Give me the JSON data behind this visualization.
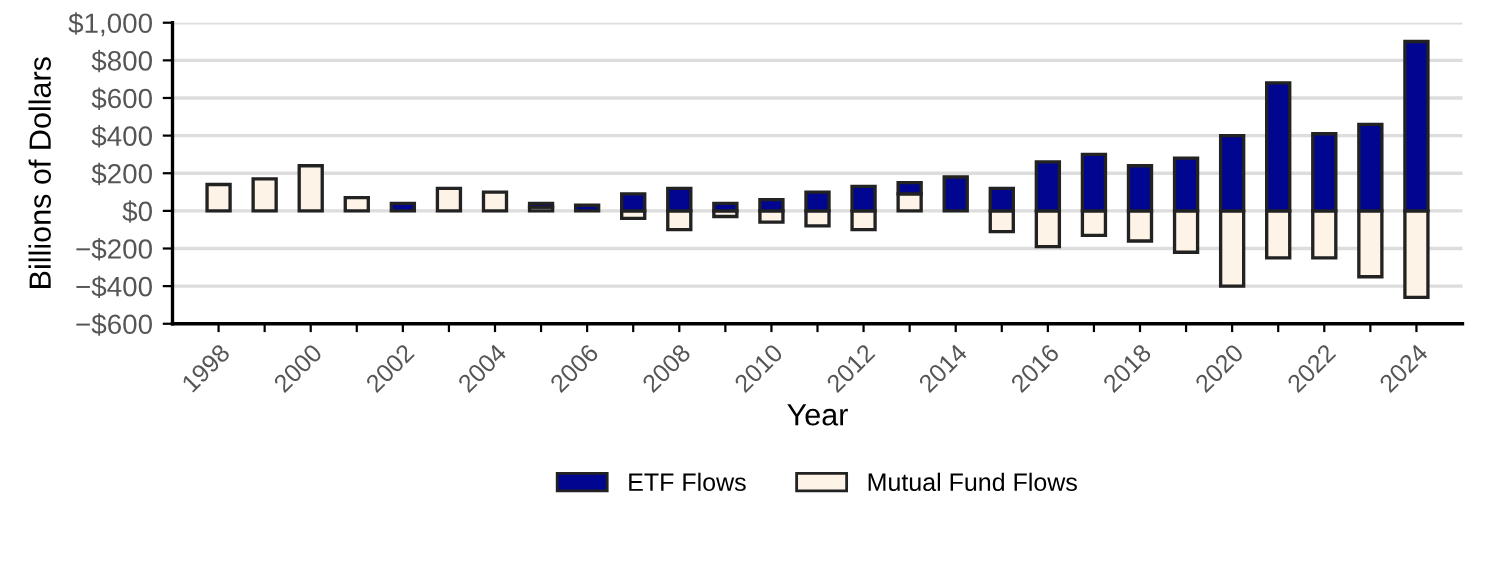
{
  "chart_data": {
    "type": "bar",
    "stacked": true,
    "xlabel": "Year",
    "ylabel": "Billions of Dollars",
    "categories": [
      "1998",
      null,
      "2000",
      null,
      "2002",
      null,
      "2004",
      null,
      "2006",
      null,
      "2008",
      null,
      "2010",
      null,
      "2012",
      null,
      "2014",
      null,
      "2016",
      null,
      "2018",
      null,
      "2020",
      null,
      "2022",
      null,
      "2024"
    ],
    "series": [
      {
        "name": "Mutual Fund Flows",
        "color": "#fdf3e6",
        "values": [
          140,
          170,
          240,
          70,
          null,
          120,
          100,
          20,
          null,
          -40,
          -100,
          -30,
          -60,
          -80,
          -100,
          90,
          null,
          -110,
          -190,
          -130,
          -160,
          -220,
          -400,
          -250,
          -250,
          -350,
          -460
        ]
      },
      {
        "name": "ETF Flows",
        "color": "#00068f",
        "values": [
          null,
          null,
          null,
          null,
          40,
          null,
          null,
          20,
          30,
          90,
          120,
          40,
          60,
          100,
          130,
          60,
          180,
          120,
          260,
          300,
          240,
          280,
          400,
          680,
          410,
          460,
          900
        ]
      }
    ],
    "ylim": [
      -600,
      1000
    ],
    "yticks": [
      {
        "value": -600,
        "label": "−$600"
      },
      {
        "value": -400,
        "label": "−$400"
      },
      {
        "value": -200,
        "label": "−$200"
      },
      {
        "value": 0,
        "label": "$0"
      },
      {
        "value": 200,
        "label": "$200"
      },
      {
        "value": 400,
        "label": "$400"
      },
      {
        "value": 600,
        "label": "$600"
      },
      {
        "value": 800,
        "label": "$800"
      },
      {
        "value": 1000,
        "label": "$1,000"
      }
    ],
    "grid": "y",
    "legend": "bottom"
  }
}
